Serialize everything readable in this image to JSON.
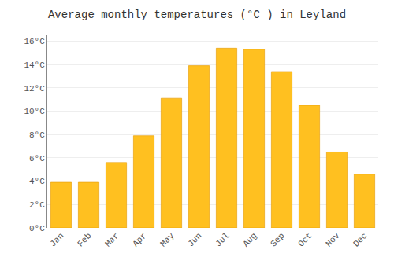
{
  "chart_data": {
    "type": "bar",
    "title": "Average monthly temperatures (°C ) in Leyland",
    "categories": [
      "Jan",
      "Feb",
      "Mar",
      "Apr",
      "May",
      "Jun",
      "Jul",
      "Aug",
      "Sep",
      "Oct",
      "Nov",
      "Dec"
    ],
    "values": [
      3.9,
      3.9,
      5.6,
      7.9,
      11.1,
      13.9,
      15.4,
      15.3,
      13.4,
      10.5,
      6.5,
      4.6
    ],
    "color": "#FFC020",
    "ylim": [
      0,
      16.5
    ],
    "yticks": [
      {
        "value": 0,
        "label": "0°C"
      },
      {
        "value": 2,
        "label": "2°C"
      },
      {
        "value": 4,
        "label": "4°C"
      },
      {
        "value": 6,
        "label": "6°C"
      },
      {
        "value": 8,
        "label": "8°C"
      },
      {
        "value": 10,
        "label": "10°C"
      },
      {
        "value": 12,
        "label": "12°C"
      },
      {
        "value": 14,
        "label": "14°C"
      },
      {
        "value": 16,
        "label": "16°C"
      }
    ],
    "grid": true
  }
}
